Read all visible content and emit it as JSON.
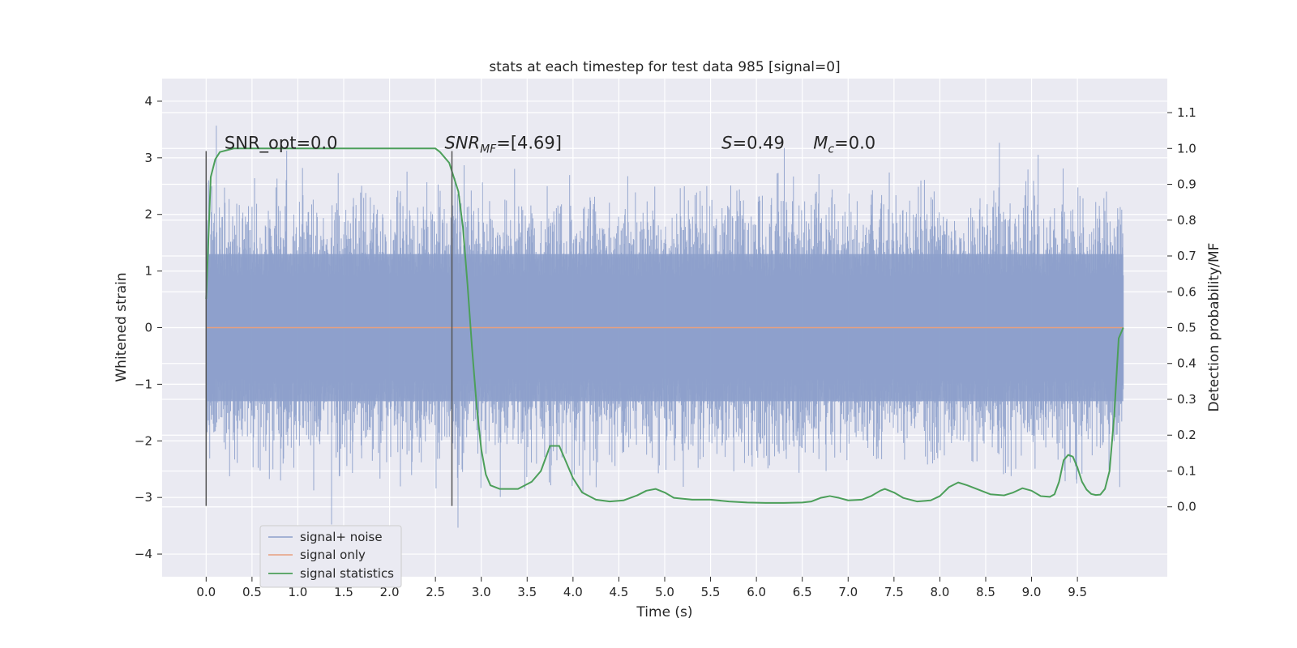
{
  "chart_data": {
    "type": "line",
    "title": "stats at each timestep for test data 985 [signal=0]",
    "xlabel": "Time (s)",
    "ylabel": "Whitened strain",
    "y2label": "Detection probability/MF",
    "xlim": [
      -0.48,
      10.48
    ],
    "ylim": [
      -4.4,
      4.4
    ],
    "y2lim": [
      -0.195,
      1.195
    ],
    "x_ticks": [
      "0.0",
      "0.5",
      "1.0",
      "1.5",
      "2.0",
      "2.5",
      "3.0",
      "3.5",
      "4.0",
      "4.5",
      "5.0",
      "5.5",
      "6.0",
      "6.5",
      "7.0",
      "7.5",
      "8.0",
      "8.5",
      "9.0",
      "9.5"
    ],
    "y_ticks": [
      "4",
      "3",
      "2",
      "1",
      "0",
      "−1",
      "−2",
      "−3",
      "−4"
    ],
    "y2_ticks": [
      "1.1",
      "1.0",
      "0.9",
      "0.8",
      "0.7",
      "0.6",
      "0.5",
      "0.4",
      "0.3",
      "0.2",
      "0.1",
      "0.0"
    ],
    "grid": true,
    "legend_position": "lower-left",
    "series": [
      {
        "name": "signal+ noise",
        "color": "#8da0cb",
        "description_type": "noise",
        "x_range": [
          0.0,
          10.0
        ],
        "band_p50": [
          -0.65,
          0.65
        ],
        "band_p90": [
          -1.3,
          1.3
        ],
        "peak_abs_max": 4.0
      },
      {
        "name": "signal only",
        "color": "#e8a07f",
        "x": [
          0.0,
          10.0
        ],
        "y": [
          0.0,
          0.0
        ]
      },
      {
        "name": "signal statistics",
        "color": "#4c9f5a",
        "axis": "right",
        "x": [
          0.0,
          0.05,
          0.1,
          0.15,
          0.3,
          0.5,
          1.0,
          1.5,
          2.0,
          2.3,
          2.5,
          2.55,
          2.65,
          2.75,
          2.8,
          2.85,
          2.9,
          2.95,
          3.0,
          3.05,
          3.1,
          3.2,
          3.4,
          3.55,
          3.65,
          3.75,
          3.85,
          3.9,
          4.0,
          4.1,
          4.25,
          4.4,
          4.55,
          4.7,
          4.8,
          4.9,
          5.0,
          5.1,
          5.3,
          5.5,
          5.7,
          5.9,
          6.1,
          6.3,
          6.5,
          6.6,
          6.7,
          6.8,
          6.9,
          7.0,
          7.15,
          7.25,
          7.35,
          7.4,
          7.5,
          7.6,
          7.75,
          7.9,
          8.0,
          8.1,
          8.2,
          8.3,
          8.4,
          8.55,
          8.7,
          8.8,
          8.9,
          9.0,
          9.1,
          9.2,
          9.25,
          9.3,
          9.35,
          9.4,
          9.45,
          9.5,
          9.55,
          9.6,
          9.65,
          9.7,
          9.75,
          9.8,
          9.85,
          9.9,
          9.95,
          10.0
        ],
        "y": [
          0.58,
          0.92,
          0.97,
          0.99,
          1.0,
          1.0,
          1.0,
          1.0,
          1.0,
          1.0,
          1.0,
          0.99,
          0.96,
          0.88,
          0.78,
          0.62,
          0.44,
          0.28,
          0.16,
          0.09,
          0.06,
          0.05,
          0.05,
          0.07,
          0.1,
          0.17,
          0.17,
          0.14,
          0.08,
          0.04,
          0.02,
          0.015,
          0.018,
          0.032,
          0.045,
          0.05,
          0.04,
          0.025,
          0.02,
          0.02,
          0.015,
          0.012,
          0.011,
          0.011,
          0.012,
          0.015,
          0.025,
          0.03,
          0.025,
          0.018,
          0.02,
          0.03,
          0.045,
          0.05,
          0.04,
          0.025,
          0.015,
          0.018,
          0.03,
          0.055,
          0.068,
          0.06,
          0.05,
          0.035,
          0.032,
          0.04,
          0.052,
          0.045,
          0.03,
          0.028,
          0.035,
          0.07,
          0.13,
          0.145,
          0.14,
          0.11,
          0.07,
          0.048,
          0.036,
          0.033,
          0.034,
          0.05,
          0.1,
          0.25,
          0.47,
          0.5
        ]
      }
    ],
    "vertical_lines_x": [
      0.0,
      2.68
    ],
    "annotations": [
      {
        "text": "SNR_opt=0.0",
        "x": 0.2,
        "y2": 1.0
      },
      {
        "text": "SNR_MF=[4.69]",
        "base": "SNR",
        "sub": "MF",
        "value": "=[4.69]",
        "x": 2.6,
        "y2": 1.0
      },
      {
        "text": "S=0.49",
        "base": "S",
        "value": "=0.49",
        "x": 5.62,
        "y2": 1.0
      },
      {
        "text": "M_c=0.0",
        "base": "M",
        "sub": "c",
        "value": "=0.0",
        "x": 6.62,
        "y2": 1.0
      }
    ]
  }
}
